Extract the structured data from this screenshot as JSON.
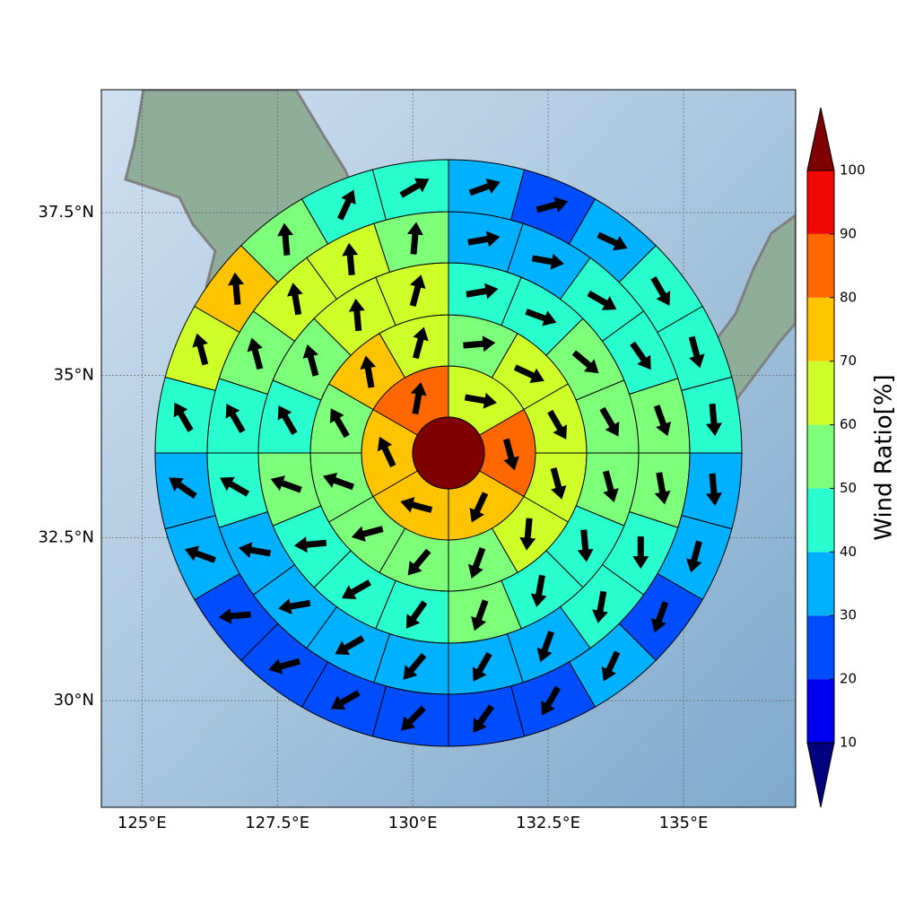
{
  "chart_data": {
    "type": "polar-grid",
    "xlim": [
      124.25,
      137.07
    ],
    "ylim": [
      28.36,
      39.39
    ],
    "xticks": [
      {
        "value": 125,
        "label": "125°E"
      },
      {
        "value": 127.5,
        "label": "127.5°E"
      },
      {
        "value": 130,
        "label": "130°E"
      },
      {
        "value": 132.5,
        "label": "132.5°E"
      },
      {
        "value": 135,
        "label": "135°E"
      }
    ],
    "yticks": [
      {
        "value": 30,
        "label": "30°N"
      },
      {
        "value": 32.5,
        "label": "32.5°N"
      },
      {
        "value": 35,
        "label": "35°N"
      },
      {
        "value": 37.5,
        "label": "37.5°N"
      }
    ],
    "grid": true,
    "colorbar": {
      "label": "Wind Ratio[%]",
      "ticks": [
        10,
        20,
        30,
        40,
        50,
        60,
        70,
        80,
        90,
        100
      ],
      "colors": [
        "#00007f",
        "#0000f1",
        "#004dff",
        "#00b1ff",
        "#29ffce",
        "#7dff7a",
        "#ceff29",
        "#ffc400",
        "#ff6800",
        "#f10800",
        "#7f0000"
      ]
    },
    "center": {
      "value": 105
    },
    "rings": [
      {
        "values": [
          65,
          85,
          75,
          75,
          75,
          85
        ],
        "directions": [
          100,
          165,
          205,
          285,
          335,
          10
        ]
      },
      {
        "values": [
          55,
          65,
          65,
          65,
          65,
          55,
          55,
          55,
          55,
          55,
          75,
          65
        ],
        "directions": [
          85,
          115,
          150,
          165,
          185,
          200,
          220,
          255,
          290,
          330,
          350,
          15
        ]
      },
      {
        "values": [
          45,
          45,
          55,
          55,
          55,
          45,
          45,
          55,
          45,
          45,
          45,
          55,
          45,
          55,
          65,
          65
        ],
        "directions": [
          80,
          110,
          130,
          150,
          165,
          175,
          190,
          200,
          215,
          240,
          265,
          290,
          330,
          345,
          355,
          15
        ]
      },
      {
        "values": [
          35,
          35,
          45,
          45,
          55,
          55,
          45,
          45,
          35,
          35,
          35,
          35,
          35,
          35,
          45,
          45,
          55,
          65,
          65,
          55
        ],
        "directions": [
          80,
          100,
          120,
          145,
          160,
          170,
          180,
          190,
          200,
          210,
          220,
          240,
          260,
          280,
          300,
          330,
          345,
          350,
          355,
          5
        ]
      },
      {
        "values": [
          35,
          25,
          35,
          45,
          45,
          45,
          35,
          35,
          25,
          35,
          25,
          25,
          25,
          25,
          25,
          25,
          35,
          35,
          45,
          65,
          75,
          55,
          45,
          45
        ],
        "directions": [
          70,
          75,
          115,
          150,
          165,
          175,
          175,
          195,
          200,
          205,
          210,
          215,
          225,
          240,
          255,
          265,
          290,
          305,
          330,
          345,
          355,
          355,
          25,
          60
        ]
      }
    ]
  }
}
